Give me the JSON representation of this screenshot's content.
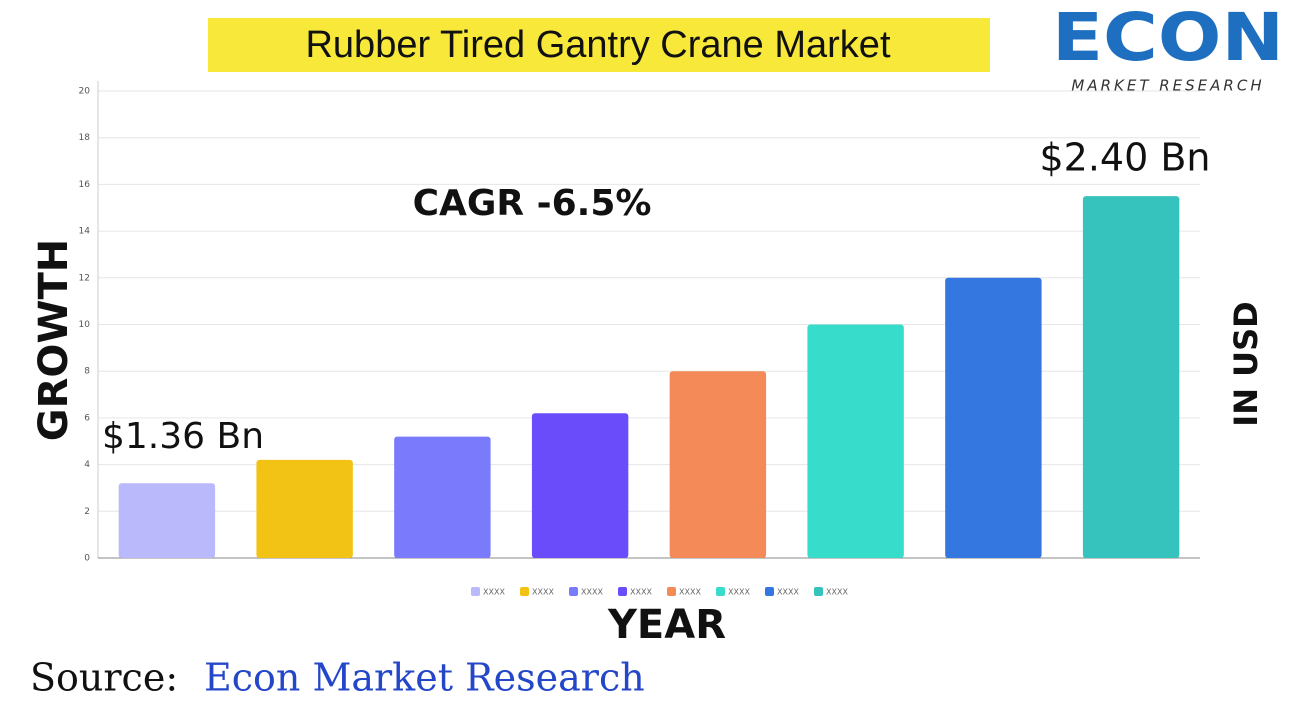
{
  "chart_data": {
    "type": "bar",
    "title": "Rubber Tired Gantry Crane Market",
    "categories": [
      "XXXX",
      "XXXX",
      "XXXX",
      "XXXX",
      "XXXX",
      "XXXX",
      "XXXX",
      "XXXX"
    ],
    "values": [
      3.2,
      4.2,
      5.2,
      6.2,
      8,
      10,
      12,
      15.5
    ],
    "colors": [
      "#b9b9fb",
      "#f2c314",
      "#7a7afc",
      "#6a4cfb",
      "#f48a57",
      "#38dccb",
      "#3577e0",
      "#37c3bd"
    ],
    "ylim": [
      0,
      20
    ],
    "yticks": [
      0,
      2,
      4,
      6,
      8,
      10,
      12,
      14,
      16,
      18,
      20
    ],
    "grid": true,
    "legend": "bottom",
    "x_label": "YEAR",
    "y_label": "GROWTH",
    "y2_label": "IN USD",
    "annotations": [
      "$1.36 Bn",
      "$2.40 Bn",
      "CAGR -6.5%"
    ]
  },
  "logo": {
    "name": "ECON",
    "tagline": "MARKET RESEARCH"
  },
  "source": {
    "label": "Source:",
    "name": "Econ Market Research"
  }
}
